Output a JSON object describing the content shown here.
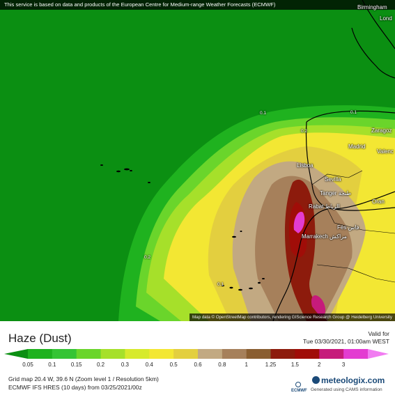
{
  "banner": "This service is based on data and products of the European Centre for Medium-range Weather Forecasts (ECMWF)",
  "attribution": "Map data © OpenStreetMap contributors, rendering GIScience Research Group @ Heidelberg University",
  "cities": {
    "birmingham": "Birmingham",
    "london": "Lond",
    "zaragoza": "Zaragoz",
    "madrid": "Madrid",
    "valencia": "Valenc",
    "lisboa": "Lisboa",
    "sevilla": "Sevilla",
    "tanger": "Tanger طنجة",
    "oran": "Oran",
    "rabat": "Rabat الرباط",
    "fes": "Fès فاس",
    "marrakech": "Marrakech مراكش"
  },
  "contours": [
    "0.1",
    "0.1",
    "0.2",
    "0.2",
    "0.1"
  ],
  "legend": {
    "title": "Haze (Dust)",
    "valid_label": "Valid for",
    "valid_time": "Tue 03/30/2021, 01:00am WEST",
    "ticks": [
      "0.05",
      "0.1",
      "0.15",
      "0.2",
      "0.3",
      "0.4",
      "0.5",
      "0.6",
      "0.8",
      "1",
      "1.25",
      "1.5",
      "2",
      "3"
    ],
    "colors": [
      "#1fb21f",
      "#35c435",
      "#6ad52b",
      "#a6e02a",
      "#d7ea2c",
      "#f3e733",
      "#e3cf3f",
      "#c2a982",
      "#a6805b",
      "#8a5e31",
      "#8d1b0c",
      "#a00d08",
      "#c61b7b",
      "#e33cd1"
    ],
    "left_color": "#0b8f12",
    "right_color": "#f17cf1"
  },
  "footer": {
    "grid": "Grid map 20.4 W, 39.6 N (Zoom level 1 / Resolution 5km)",
    "model": "ECMWF IFS HRES (10 days) from 03/25/2021/00z",
    "ecmwf": "ECMWF",
    "brand": "meteologix.com",
    "brand_sub": "Generated using CAMS information"
  }
}
